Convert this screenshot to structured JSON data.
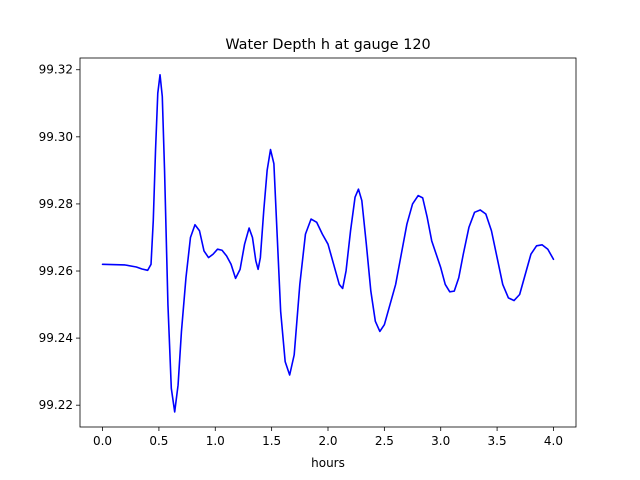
{
  "chart_data": {
    "type": "line",
    "title": "Water Depth h at gauge 120",
    "xlabel": "hours",
    "ylabel": "",
    "xlim": [
      -0.2,
      4.2
    ],
    "ylim": [
      99.2135,
      99.3235
    ],
    "xticks": [
      0.0,
      0.5,
      1.0,
      1.5,
      2.0,
      2.5,
      3.0,
      3.5,
      4.0
    ],
    "xtick_labels": [
      "0.0",
      "0.5",
      "1.0",
      "1.5",
      "2.0",
      "2.5",
      "3.0",
      "3.5",
      "4.0"
    ],
    "yticks": [
      99.22,
      99.24,
      99.26,
      99.28,
      99.3,
      99.32
    ],
    "ytick_labels": [
      "99.22",
      "99.24",
      "99.26",
      "99.28",
      "99.30",
      "99.32"
    ],
    "grid": false,
    "series": [
      {
        "name": "",
        "color": "#0000ff",
        "points": [
          [
            0.0,
            99.262
          ],
          [
            0.2,
            99.2618
          ],
          [
            0.3,
            99.2612
          ],
          [
            0.35,
            99.2606
          ],
          [
            0.4,
            99.2602
          ],
          [
            0.43,
            99.262
          ],
          [
            0.45,
            99.275
          ],
          [
            0.47,
            99.296
          ],
          [
            0.49,
            99.313
          ],
          [
            0.51,
            99.3185
          ],
          [
            0.53,
            99.312
          ],
          [
            0.55,
            99.29
          ],
          [
            0.58,
            99.25
          ],
          [
            0.61,
            99.225
          ],
          [
            0.64,
            99.218
          ],
          [
            0.67,
            99.226
          ],
          [
            0.7,
            99.242
          ],
          [
            0.74,
            99.258
          ],
          [
            0.78,
            99.27
          ],
          [
            0.82,
            99.2738
          ],
          [
            0.86,
            99.272
          ],
          [
            0.9,
            99.266
          ],
          [
            0.94,
            99.264
          ],
          [
            0.98,
            99.265
          ],
          [
            1.02,
            99.2665
          ],
          [
            1.06,
            99.2662
          ],
          [
            1.1,
            99.2645
          ],
          [
            1.14,
            99.262
          ],
          [
            1.18,
            99.2578
          ],
          [
            1.22,
            99.2605
          ],
          [
            1.26,
            99.268
          ],
          [
            1.3,
            99.2728
          ],
          [
            1.33,
            99.27
          ],
          [
            1.36,
            99.263
          ],
          [
            1.38,
            99.2605
          ],
          [
            1.4,
            99.264
          ],
          [
            1.43,
            99.278
          ],
          [
            1.46,
            99.29
          ],
          [
            1.49,
            99.2962
          ],
          [
            1.52,
            99.292
          ],
          [
            1.55,
            99.27
          ],
          [
            1.58,
            99.248
          ],
          [
            1.62,
            99.233
          ],
          [
            1.66,
            99.229
          ],
          [
            1.7,
            99.235
          ],
          [
            1.75,
            99.256
          ],
          [
            1.8,
            99.271
          ],
          [
            1.85,
            99.2755
          ],
          [
            1.9,
            99.2745
          ],
          [
            1.95,
            99.271
          ],
          [
            2.0,
            99.268
          ],
          [
            2.05,
            99.262
          ],
          [
            2.1,
            99.256
          ],
          [
            2.13,
            99.2548
          ],
          [
            2.16,
            99.26
          ],
          [
            2.2,
            99.272
          ],
          [
            2.24,
            99.282
          ],
          [
            2.27,
            99.2844
          ],
          [
            2.3,
            99.281
          ],
          [
            2.34,
            99.268
          ],
          [
            2.38,
            99.254
          ],
          [
            2.42,
            99.245
          ],
          [
            2.46,
            99.242
          ],
          [
            2.5,
            99.244
          ],
          [
            2.55,
            99.25
          ],
          [
            2.6,
            99.256
          ],
          [
            2.65,
            99.265
          ],
          [
            2.7,
            99.274
          ],
          [
            2.75,
            99.28
          ],
          [
            2.8,
            99.2825
          ],
          [
            2.84,
            99.2818
          ],
          [
            2.88,
            99.276
          ],
          [
            2.92,
            99.269
          ],
          [
            2.96,
            99.265
          ],
          [
            3.0,
            99.261
          ],
          [
            3.04,
            99.256
          ],
          [
            3.08,
            99.2538
          ],
          [
            3.12,
            99.254
          ],
          [
            3.16,
            99.258
          ],
          [
            3.2,
            99.265
          ],
          [
            3.25,
            99.273
          ],
          [
            3.3,
            99.2775
          ],
          [
            3.35,
            99.2782
          ],
          [
            3.4,
            99.277
          ],
          [
            3.45,
            99.272
          ],
          [
            3.5,
            99.264
          ],
          [
            3.55,
            99.256
          ],
          [
            3.6,
            99.252
          ],
          [
            3.65,
            99.2512
          ],
          [
            3.7,
            99.253
          ],
          [
            3.75,
            99.259
          ],
          [
            3.8,
            99.265
          ],
          [
            3.85,
            99.2675
          ],
          [
            3.9,
            99.2678
          ],
          [
            3.95,
            99.2665
          ],
          [
            4.0,
            99.2635
          ]
        ]
      }
    ]
  }
}
